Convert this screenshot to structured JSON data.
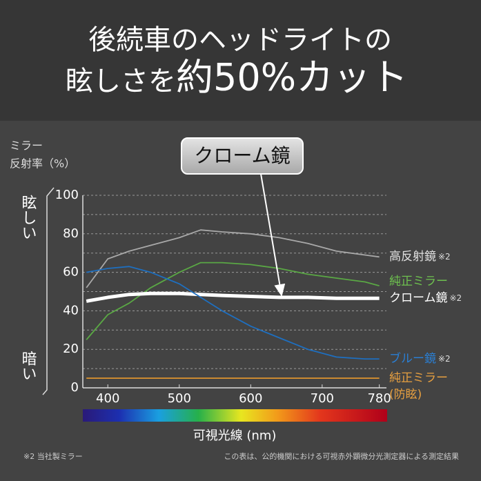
{
  "chart_data": {
    "type": "line",
    "title": [
      "後続車のヘッドライトの",
      "眩しさを",
      "約50%カット"
    ],
    "y_label": [
      "ミラー",
      "反射率（%）"
    ],
    "y_direction": [
      "眩しい",
      "暗い"
    ],
    "x_label": "可視光線 (nm)",
    "callout": "クローム鏡",
    "footnote": "※2 当社製ミラー",
    "source_note": "この表は、公的機関における可視赤外顕微分光測定器による測定結果",
    "x": [
      370,
      400,
      430,
      460,
      500,
      530,
      560,
      600,
      640,
      680,
      720,
      760,
      780
    ],
    "xlim": [
      365,
      790
    ],
    "xticks": [
      400,
      500,
      600,
      700,
      780
    ],
    "ylim": [
      0,
      100
    ],
    "yticks": [
      0,
      20,
      40,
      60,
      80,
      100
    ],
    "minor_yticks": [
      10,
      30,
      50,
      70,
      90
    ],
    "grid": true,
    "series": [
      {
        "name": "高反射鏡",
        "note": "※2",
        "color": "#a9a9a9",
        "label_color": "#e0e0e0",
        "values": [
          52,
          67,
          71,
          74,
          78,
          82,
          81,
          80,
          78,
          75,
          71,
          69,
          68
        ]
      },
      {
        "name": "純正ミラー",
        "color": "#5aa844",
        "label_color": "#6ec24f",
        "values": [
          25,
          38,
          44,
          52,
          60,
          65,
          65,
          64,
          62,
          59,
          57,
          55,
          53
        ]
      },
      {
        "name": "クローム鏡",
        "note": "※2",
        "color": "#ffffff",
        "label_color": "#ffffff",
        "values": [
          45,
          47,
          48.5,
          49,
          49,
          48.5,
          48,
          47.5,
          47,
          47,
          46.5,
          46.5,
          46.5
        ]
      },
      {
        "name": "ブルー鏡",
        "note": "※2",
        "color": "#1e6fc0",
        "label_color": "#2a7fd4",
        "values": [
          60,
          62,
          63,
          60,
          54,
          47,
          40,
          32,
          26,
          20,
          16,
          15,
          15
        ]
      },
      {
        "name": "純正ミラー\n(防眩)",
        "color": "#e0952e",
        "label_color": "#e8a040",
        "values": [
          5,
          5,
          5,
          5,
          5,
          5,
          5,
          5,
          5,
          5,
          5,
          5,
          5
        ]
      }
    ]
  }
}
